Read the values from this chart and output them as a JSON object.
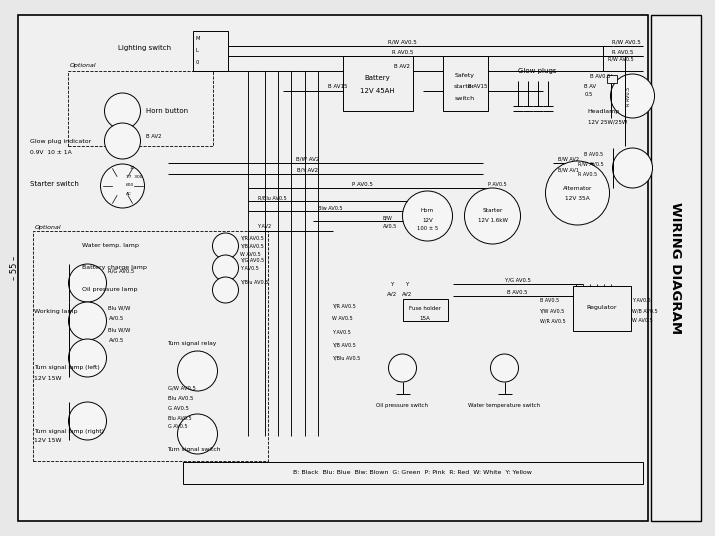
{
  "title": "WIRING DIAGRAM",
  "page_label": "55",
  "legend": "B: Black  Blu: Blue  Blw: Blown  G: Green  P: Pink  R: Red  W: White  Y: Yellow",
  "bg": "#e8e8e8",
  "diagram_bg": "#f5f5f5",
  "lw_wire": 0.7,
  "lw_border": 1.0,
  "fs_label": 5.0,
  "fs_wire": 4.0,
  "fs_title": 8.5
}
